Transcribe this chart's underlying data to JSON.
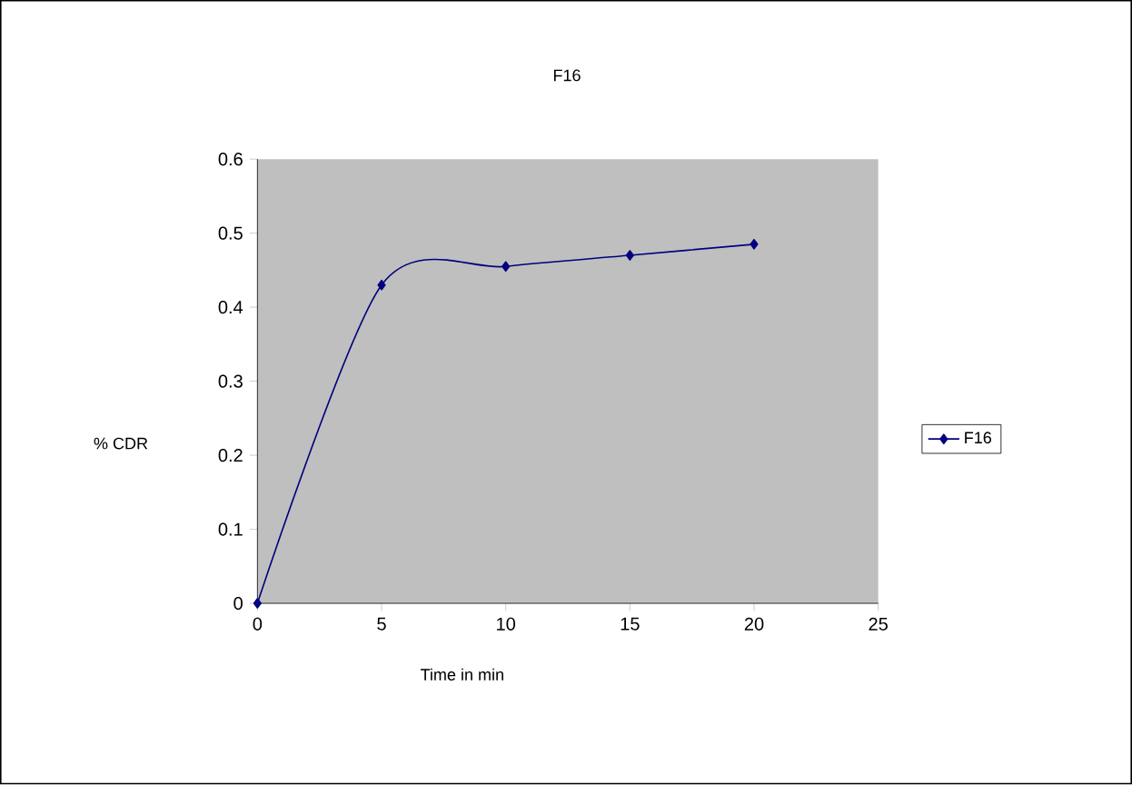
{
  "chart_data": {
    "type": "line",
    "title": "F16",
    "xlabel": "Time in min",
    "ylabel": "% CDR",
    "x": [
      0,
      5,
      10,
      15,
      20
    ],
    "series": [
      {
        "name": "F16",
        "color": "#000080",
        "values": [
          0,
          0.43,
          0.455,
          0.47,
          0.485
        ]
      }
    ],
    "xlim": [
      0,
      25
    ],
    "xticks": [
      0,
      5,
      10,
      15,
      20,
      25
    ],
    "ylim": [
      0,
      0.6
    ],
    "yticks": [
      0,
      0.1,
      0.2,
      0.3,
      0.4,
      0.5,
      0.6
    ],
    "marker": "diamond",
    "line_style": "solid",
    "legend": "right",
    "grid": false
  }
}
